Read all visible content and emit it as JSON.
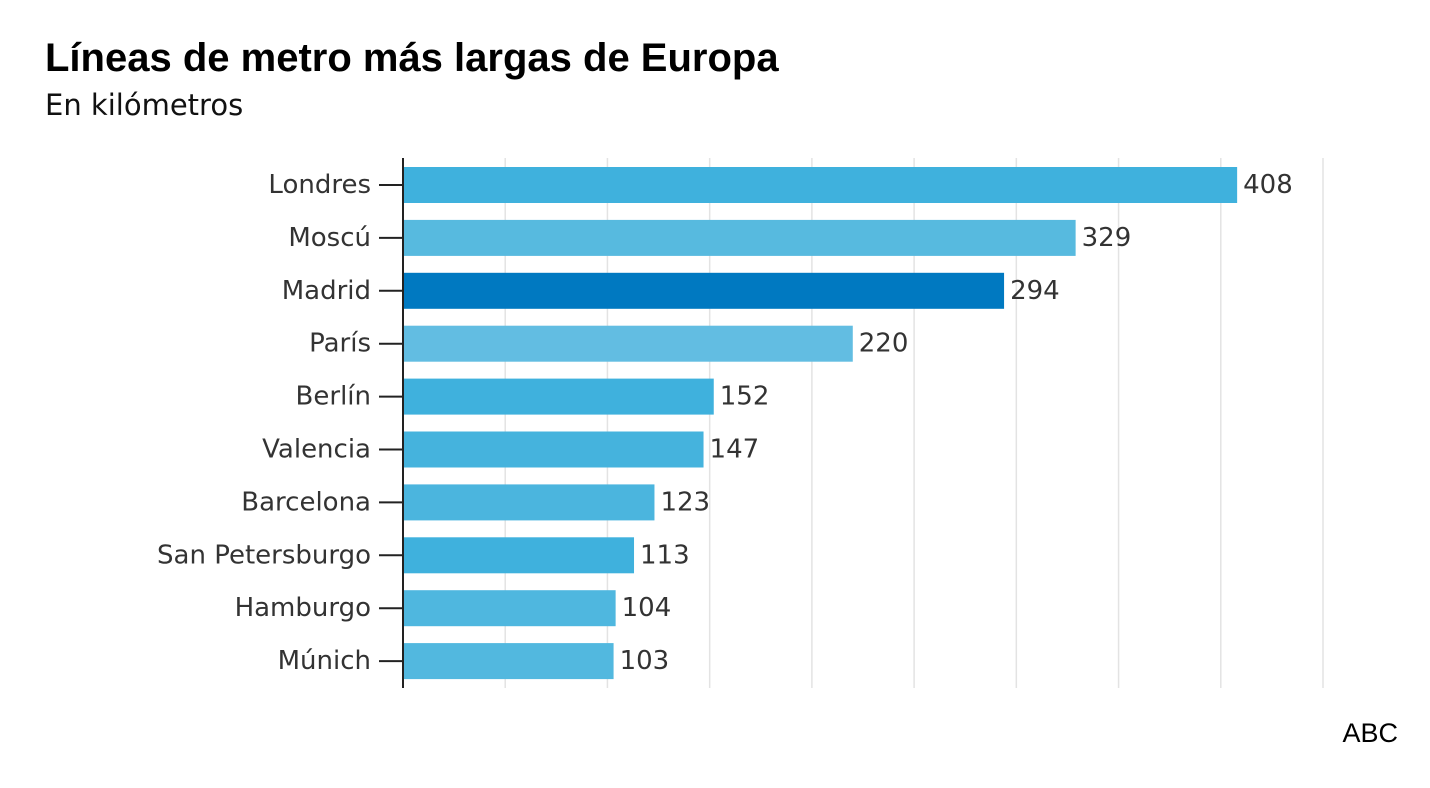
{
  "chart_data": {
    "type": "bar",
    "orientation": "horizontal",
    "title": "Líneas de metro más largas de Europa",
    "subtitle": "En kilómetros",
    "source": "ABC",
    "categories": [
      "Londres",
      "Moscú",
      "Madrid",
      "París",
      "Berlín",
      "Valencia",
      "Barcelona",
      "San Petersburgo",
      "Hamburgo",
      "Múnich"
    ],
    "values": [
      408,
      329,
      294,
      220,
      152,
      147,
      123,
      113,
      104,
      103
    ],
    "value_labels": [
      "408",
      "329",
      "294",
      "220",
      "152",
      "147",
      "123",
      "113",
      "104",
      "103"
    ],
    "bar_colors": [
      "#3fb1dd",
      "#57badf",
      "#0079c1",
      "#62bde2",
      "#3fb1dd",
      "#45b3dd",
      "#4bb5de",
      "#3fb1dd",
      "#4fb7df",
      "#52b8df"
    ],
    "highlight": "Madrid",
    "xlim": [
      0,
      450
    ],
    "grid": true,
    "legend": false
  }
}
